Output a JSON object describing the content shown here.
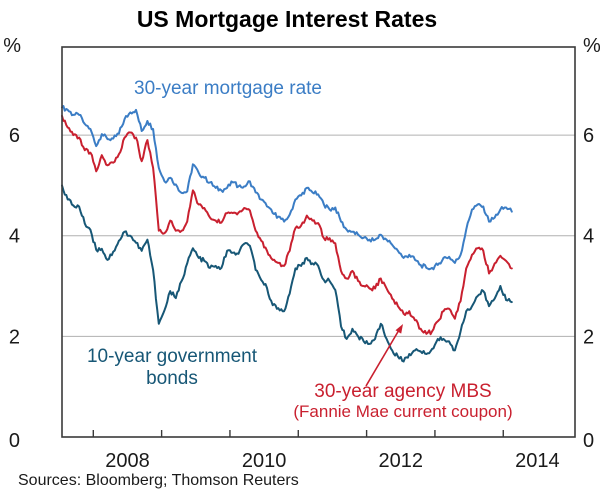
{
  "title": "US Mortgage Interest Rates",
  "source_note": "Sources: Bloomberg; Thomson Reuters",
  "axis": {
    "unit": "%",
    "ytick_labels": [
      "0",
      "2",
      "4",
      "6"
    ],
    "xtick_labels": [
      "2008",
      "2010",
      "2012",
      "2014"
    ]
  },
  "labels": {
    "mortgage": "30-year mortgage rate",
    "bonds_line1": "10-year government",
    "bonds_line2": "bonds",
    "mbs_line1": "30-year agency MBS",
    "mbs_line2": "(Fannie Mae current coupon)"
  },
  "colors": {
    "mortgage_blue": "#3b7dc5",
    "bonds_dark_blue": "#175776",
    "mbs_red": "#c9202f",
    "gridline": "#b0b0b0",
    "frame": "#3a3a3a",
    "text": "#1a1a1a"
  },
  "chart_data": {
    "type": "line",
    "title": "US Mortgage Interest Rates",
    "xlabel": "",
    "ylabel": "%",
    "ylim": [
      0,
      7.75
    ],
    "xlim": [
      2007.542,
      2015.05
    ],
    "grid": true,
    "grid_values": [
      2,
      4,
      6
    ],
    "ytick_values": [
      0,
      2,
      4,
      6
    ],
    "xtick_years": [
      2008,
      2009,
      2010,
      2011,
      2012,
      2013,
      2014
    ],
    "xtick_label_years": [
      2008,
      2010,
      2012,
      2014
    ],
    "legend_position": "annotations-on-chart",
    "x": [
      2007.542,
      2007.625,
      2007.708,
      2007.792,
      2007.875,
      2007.958,
      2008.042,
      2008.125,
      2008.208,
      2008.292,
      2008.375,
      2008.458,
      2008.542,
      2008.625,
      2008.708,
      2008.792,
      2008.875,
      2008.958,
      2009.042,
      2009.125,
      2009.208,
      2009.292,
      2009.375,
      2009.458,
      2009.542,
      2009.625,
      2009.708,
      2009.792,
      2009.875,
      2009.958,
      2010.042,
      2010.125,
      2010.208,
      2010.292,
      2010.375,
      2010.458,
      2010.542,
      2010.625,
      2010.708,
      2010.792,
      2010.875,
      2010.958,
      2011.042,
      2011.125,
      2011.208,
      2011.292,
      2011.375,
      2011.458,
      2011.542,
      2011.625,
      2011.708,
      2011.792,
      2011.875,
      2011.958,
      2012.042,
      2012.125,
      2012.208,
      2012.292,
      2012.375,
      2012.458,
      2012.542,
      2012.625,
      2012.708,
      2012.792,
      2012.875,
      2012.958,
      2013.042,
      2013.125,
      2013.208,
      2013.292,
      2013.375,
      2013.458,
      2013.542,
      2013.625,
      2013.708,
      2013.792,
      2013.875,
      2013.958,
      2014.042,
      2014.125
    ],
    "series": [
      {
        "name": "30-year mortgage rate",
        "color": "#3b7dc5",
        "values": [
          6.55,
          6.5,
          6.4,
          6.4,
          6.22,
          6.12,
          5.78,
          6.02,
          5.92,
          5.93,
          6.03,
          6.32,
          6.45,
          6.5,
          6.08,
          6.28,
          6.12,
          5.35,
          5.08,
          5.15,
          5.02,
          4.85,
          4.88,
          5.42,
          5.25,
          5.15,
          5.06,
          4.95,
          4.9,
          4.95,
          5.06,
          4.98,
          4.98,
          5.08,
          4.86,
          4.72,
          4.58,
          4.45,
          4.38,
          4.28,
          4.42,
          4.72,
          4.8,
          4.95,
          4.86,
          4.82,
          4.62,
          4.52,
          4.56,
          4.28,
          4.12,
          4.08,
          4.02,
          3.96,
          3.92,
          3.92,
          4.02,
          3.92,
          3.82,
          3.7,
          3.56,
          3.62,
          3.52,
          3.42,
          3.36,
          3.36,
          3.42,
          3.56,
          3.58,
          3.46,
          3.62,
          4.12,
          4.52,
          4.62,
          4.58,
          4.28,
          4.36,
          4.52,
          4.56,
          4.48
        ]
      },
      {
        "name": "10-year government bonds",
        "color": "#175776",
        "values": [
          5.0,
          4.72,
          4.6,
          4.58,
          4.24,
          4.12,
          3.72,
          3.74,
          3.52,
          3.68,
          3.9,
          4.08,
          4.0,
          3.86,
          3.7,
          3.92,
          3.32,
          2.25,
          2.52,
          2.9,
          2.76,
          3.1,
          3.45,
          3.75,
          3.56,
          3.5,
          3.36,
          3.4,
          3.36,
          3.7,
          3.66,
          3.64,
          3.84,
          3.8,
          3.32,
          3.12,
          2.96,
          2.62,
          2.56,
          2.5,
          2.85,
          3.35,
          3.4,
          3.56,
          3.45,
          3.4,
          3.12,
          3.1,
          2.92,
          2.2,
          1.95,
          2.15,
          2.0,
          1.9,
          1.85,
          1.95,
          2.25,
          1.95,
          1.72,
          1.6,
          1.5,
          1.65,
          1.72,
          1.7,
          1.65,
          1.75,
          1.95,
          1.95,
          1.9,
          1.72,
          2.1,
          2.5,
          2.6,
          2.8,
          2.9,
          2.6,
          2.75,
          3.0,
          2.72,
          2.68
        ]
      },
      {
        "name": "30-year agency MBS (Fannie Mae current coupon)",
        "color": "#c9202f",
        "values": [
          6.38,
          6.15,
          6.0,
          5.95,
          5.7,
          5.65,
          5.28,
          5.6,
          5.4,
          5.45,
          5.62,
          5.95,
          6.05,
          5.95,
          5.48,
          5.9,
          5.35,
          4.1,
          4.05,
          4.3,
          4.1,
          4.1,
          4.28,
          4.9,
          4.62,
          4.55,
          4.36,
          4.3,
          4.26,
          4.45,
          4.45,
          4.46,
          4.55,
          4.5,
          4.1,
          3.9,
          3.7,
          3.52,
          3.46,
          3.4,
          3.7,
          4.15,
          4.2,
          4.4,
          4.3,
          4.25,
          3.95,
          3.95,
          3.85,
          3.3,
          3.15,
          3.3,
          3.1,
          3.0,
          2.95,
          2.95,
          3.15,
          2.95,
          2.75,
          2.6,
          2.45,
          2.5,
          2.32,
          2.15,
          2.05,
          2.1,
          2.3,
          2.5,
          2.55,
          2.35,
          2.7,
          3.35,
          3.62,
          3.75,
          3.7,
          3.25,
          3.45,
          3.6,
          3.5,
          3.35
        ]
      }
    ]
  }
}
